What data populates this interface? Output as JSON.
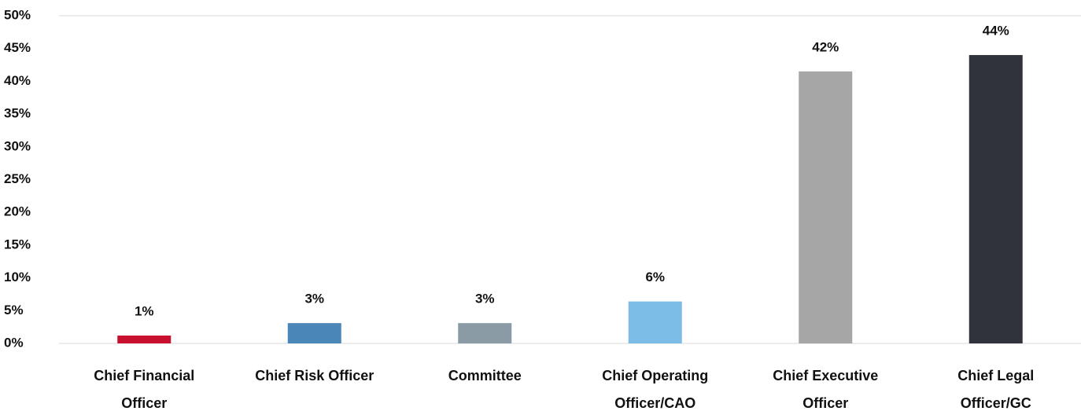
{
  "chart_data": {
    "type": "bar",
    "categories": [
      "Chief Financial Officer",
      "Chief Risk Officer",
      "Committee",
      "Chief Operating Officer/CAO",
      "Chief Executive Officer",
      "Chief Legal Officer/GC"
    ],
    "values": [
      1.2,
      3.1,
      3.1,
      6.4,
      41.5,
      44.0
    ],
    "value_labels": [
      "1%",
      "3%",
      "3%",
      "6%",
      "42%",
      "44%"
    ],
    "colors": [
      "#c8102e",
      "#4a86b8",
      "#8a9ba6",
      "#7bbde6",
      "#a6a6a6",
      "#30333b"
    ],
    "ylim": [
      0,
      50
    ],
    "yticks": [
      {
        "value": 0,
        "label": "0%"
      },
      {
        "value": 5,
        "label": "5%"
      },
      {
        "value": 10,
        "label": "10%"
      },
      {
        "value": 15,
        "label": "15%"
      },
      {
        "value": 20,
        "label": "20%"
      },
      {
        "value": 25,
        "label": "25%"
      },
      {
        "value": 30,
        "label": "30%"
      },
      {
        "value": 35,
        "label": "35%"
      },
      {
        "value": 40,
        "label": "40%"
      },
      {
        "value": 45,
        "label": "45%"
      },
      {
        "value": 50,
        "label": "50%"
      }
    ],
    "grid": false
  }
}
